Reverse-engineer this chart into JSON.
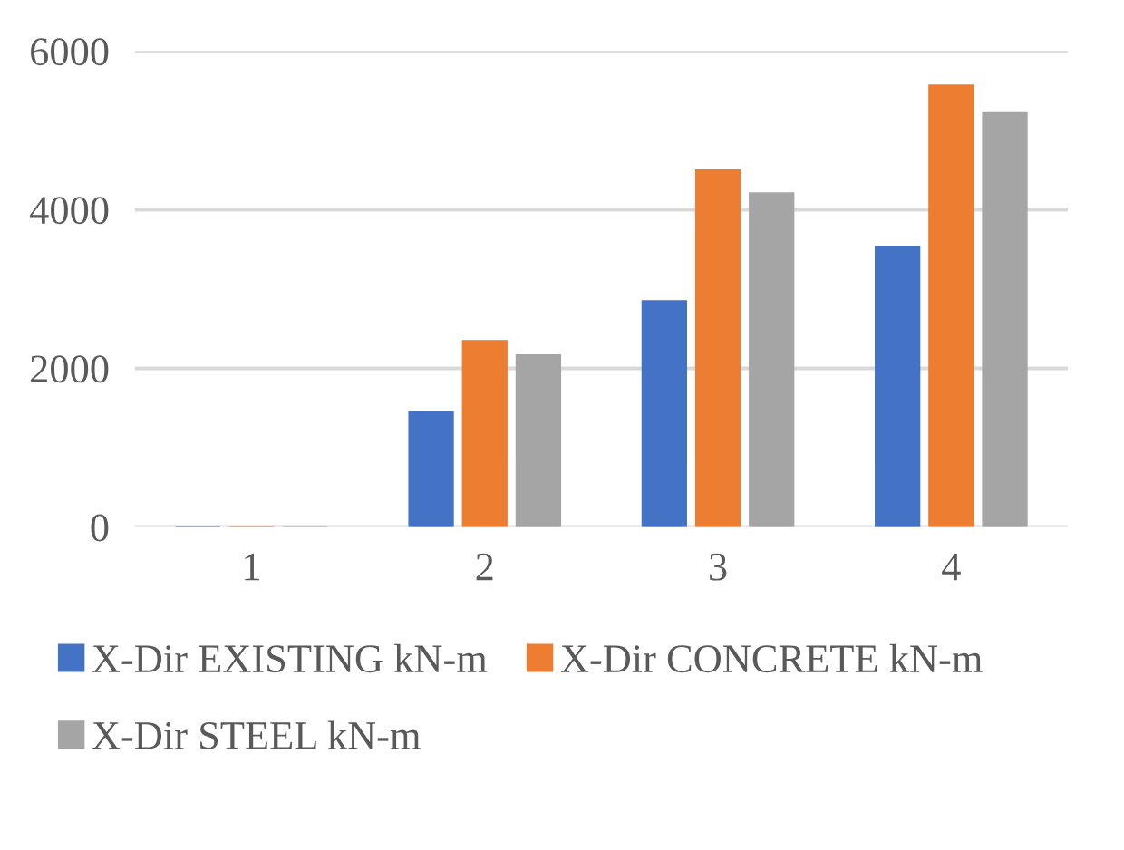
{
  "chart_data": {
    "type": "bar",
    "categories": [
      "1",
      "2",
      "3",
      "4"
    ],
    "series": [
      {
        "name": "X-Dir EXISTING kN-m",
        "color": "#4472c4",
        "values": [
          0,
          1450,
          2850,
          3530
        ]
      },
      {
        "name": "X-Dir CONCRETE kN-m",
        "color": "#ed7d31",
        "values": [
          0,
          2350,
          4500,
          5570
        ]
      },
      {
        "name": "X-Dir STEEL kN-m",
        "color": "#a5a5a5",
        "values": [
          0,
          2170,
          4210,
          5220
        ]
      }
    ],
    "ylim": [
      0,
      6000
    ],
    "yticks": [
      0,
      2000,
      4000,
      6000
    ],
    "grid": "y",
    "legend": "bottom"
  }
}
